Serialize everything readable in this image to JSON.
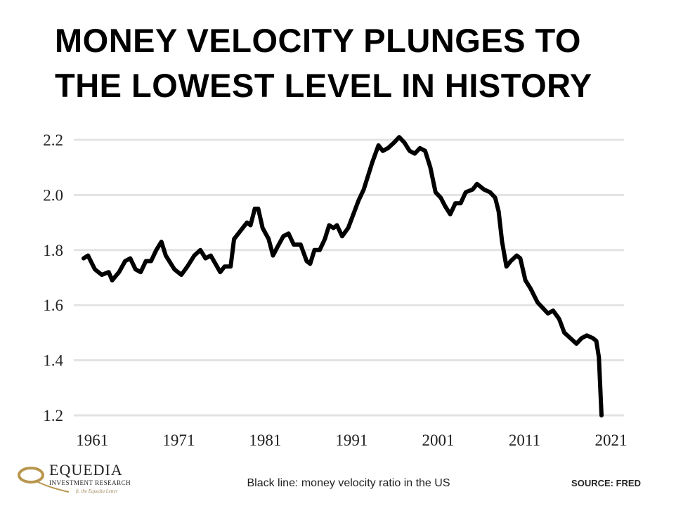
{
  "chart_data": {
    "type": "line",
    "title": [
      "MONEY VELOCITY PLUNGES TO",
      "THE LOWEST LEVEL IN HISTORY"
    ],
    "caption": "Black line: money velocity ratio in the US",
    "source": "SOURCE:  FRED",
    "logo": {
      "name": "EQUEDIA",
      "tagline": "INVESTMENT RESEARCH",
      "subline": "ft. the Equedia Letter"
    },
    "color": "#000000",
    "grid": true,
    "xlim": [
      1960,
      2022.5
    ],
    "xticks": [
      1961,
      1971,
      1981,
      1991,
      2001,
      2011,
      2021
    ],
    "ylim": [
      1.2,
      2.2
    ],
    "yticks": [
      {
        "value": 1.2,
        "label": "1.2"
      },
      {
        "value": 1.4,
        "label": "1.4"
      },
      {
        "value": 1.6,
        "label": "1.6"
      },
      {
        "value": 1.8,
        "label": "1.8"
      },
      {
        "value": 2.0,
        "label": "2.0"
      },
      {
        "value": 2.2,
        "label": "2.2"
      }
    ],
    "x": [
      1960.0,
      1960.5,
      1961.3,
      1962.1,
      1962.9,
      1963.3,
      1964.1,
      1964.8,
      1965.4,
      1966.0,
      1966.6,
      1967.2,
      1967.8,
      1968.4,
      1969.0,
      1969.5,
      1970.5,
      1971.3,
      1972.0,
      1972.8,
      1973.5,
      1974.1,
      1974.7,
      1975.8,
      1976.3,
      1977.0,
      1977.4,
      1978.4,
      1978.9,
      1979.3,
      1979.8,
      1980.2,
      1980.7,
      1981.4,
      1981.9,
      1982.4,
      1983.1,
      1983.7,
      1984.3,
      1985.1,
      1985.8,
      1986.2,
      1986.7,
      1987.3,
      1987.9,
      1988.4,
      1988.9,
      1989.3,
      1989.9,
      1990.6,
      1991.2,
      1991.8,
      1992.4,
      1992.9,
      1993.4,
      1994.1,
      1994.6,
      1995.2,
      1995.9,
      1996.5,
      1997.1,
      1997.7,
      1998.3,
      1998.9,
      1999.5,
      2000.1,
      2000.7,
      2001.3,
      2001.8,
      2002.4,
      2003.0,
      2003.6,
      2004.2,
      2005.0,
      2005.5,
      2006.3,
      2007.0,
      2007.6,
      2008.0,
      2008.4,
      2008.9,
      2009.4,
      2010.1,
      2010.5,
      2011.1,
      2011.7,
      2012.5,
      2013.1,
      2013.7,
      2014.3,
      2015.0,
      2015.6,
      2016.3,
      2017.0,
      2017.6,
      2018.2,
      2018.9,
      2019.3,
      2019.6,
      2019.9
    ],
    "values": [
      1.77,
      1.78,
      1.73,
      1.71,
      1.72,
      1.69,
      1.72,
      1.76,
      1.77,
      1.73,
      1.72,
      1.76,
      1.76,
      1.8,
      1.83,
      1.78,
      1.73,
      1.71,
      1.74,
      1.78,
      1.8,
      1.77,
      1.78,
      1.72,
      1.74,
      1.74,
      1.84,
      1.88,
      1.9,
      1.89,
      1.95,
      1.95,
      1.88,
      1.84,
      1.78,
      1.81,
      1.85,
      1.86,
      1.82,
      1.82,
      1.76,
      1.75,
      1.8,
      1.8,
      1.84,
      1.89,
      1.88,
      1.89,
      1.85,
      1.88,
      1.93,
      1.98,
      2.02,
      2.07,
      2.12,
      2.18,
      2.16,
      2.17,
      2.19,
      2.21,
      2.19,
      2.16,
      2.15,
      2.17,
      2.16,
      2.1,
      2.01,
      1.99,
      1.96,
      1.93,
      1.97,
      1.97,
      2.01,
      2.02,
      2.04,
      2.02,
      2.01,
      1.99,
      1.94,
      1.83,
      1.74,
      1.76,
      1.78,
      1.77,
      1.69,
      1.66,
      1.61,
      1.59,
      1.57,
      1.58,
      1.55,
      1.5,
      1.48,
      1.46,
      1.48,
      1.49,
      1.48,
      1.47,
      1.41,
      1.2
    ]
  }
}
